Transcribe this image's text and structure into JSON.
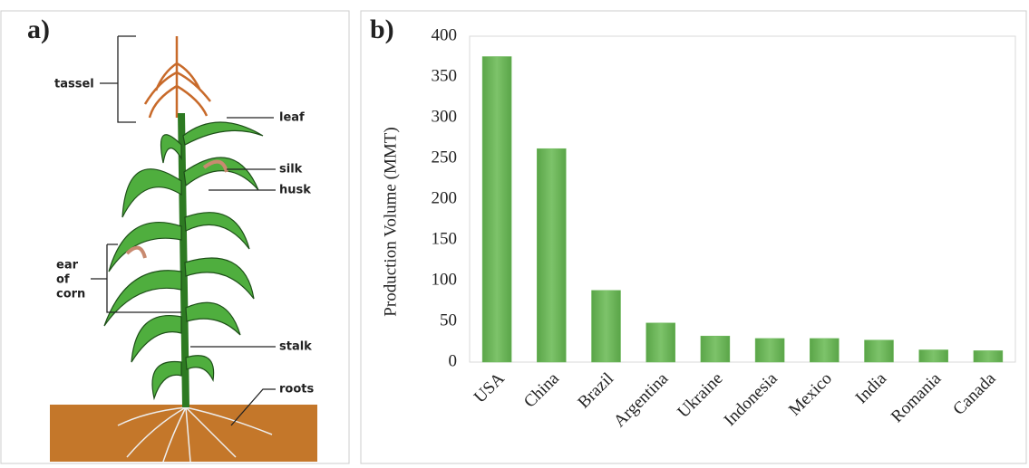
{
  "diagram": {
    "panel_label": "a)",
    "tassel": "tassel",
    "leaf": "leaf",
    "silk": "silk",
    "husk": "husk",
    "ear_of_corn": [
      "ear",
      "of",
      "corn"
    ],
    "stalk": "stalk",
    "roots": "roots"
  },
  "chart_data": {
    "type": "bar",
    "panel_label": "b)",
    "y_label": "Production Volume (MMT)",
    "categories": [
      "USA",
      "China",
      "Brazil",
      "Argentina",
      "Ukraine",
      "Indonesia",
      "Mexico",
      "India",
      "Romania",
      "Canada"
    ],
    "values": [
      375,
      262,
      88,
      48,
      32,
      29,
      29,
      27,
      15,
      14
    ],
    "color": "#6cb85a",
    "ylim": [
      0,
      400
    ],
    "yticks": [
      0,
      50,
      100,
      150,
      200,
      250,
      300,
      350,
      400
    ],
    "grid": false
  }
}
